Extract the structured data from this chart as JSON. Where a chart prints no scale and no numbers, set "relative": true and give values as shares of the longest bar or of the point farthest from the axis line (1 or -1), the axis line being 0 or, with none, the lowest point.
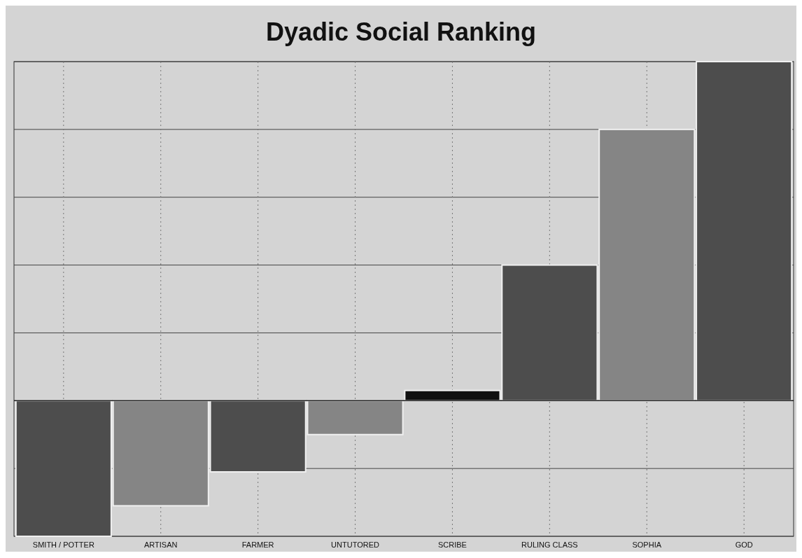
{
  "chart_data": {
    "type": "bar",
    "title": "Dyadic Social Ranking",
    "relative": true,
    "grid": true,
    "categories": [
      "SMITH / POTTER",
      "ARTISAN",
      "FARMER",
      "UNTUTORED",
      "SCRIBE",
      "RULING CLASS",
      "SOPHIA",
      "GOD"
    ],
    "values": [
      -0.4,
      -0.31,
      -0.21,
      -0.1,
      0.03,
      0.4,
      0.8,
      1
    ],
    "colors": [
      "#4d4d4d",
      "#858585",
      "#4d4d4d",
      "#858585",
      "#111111",
      "#4d4d4d",
      "#858585",
      "#4d4d4d"
    ]
  }
}
